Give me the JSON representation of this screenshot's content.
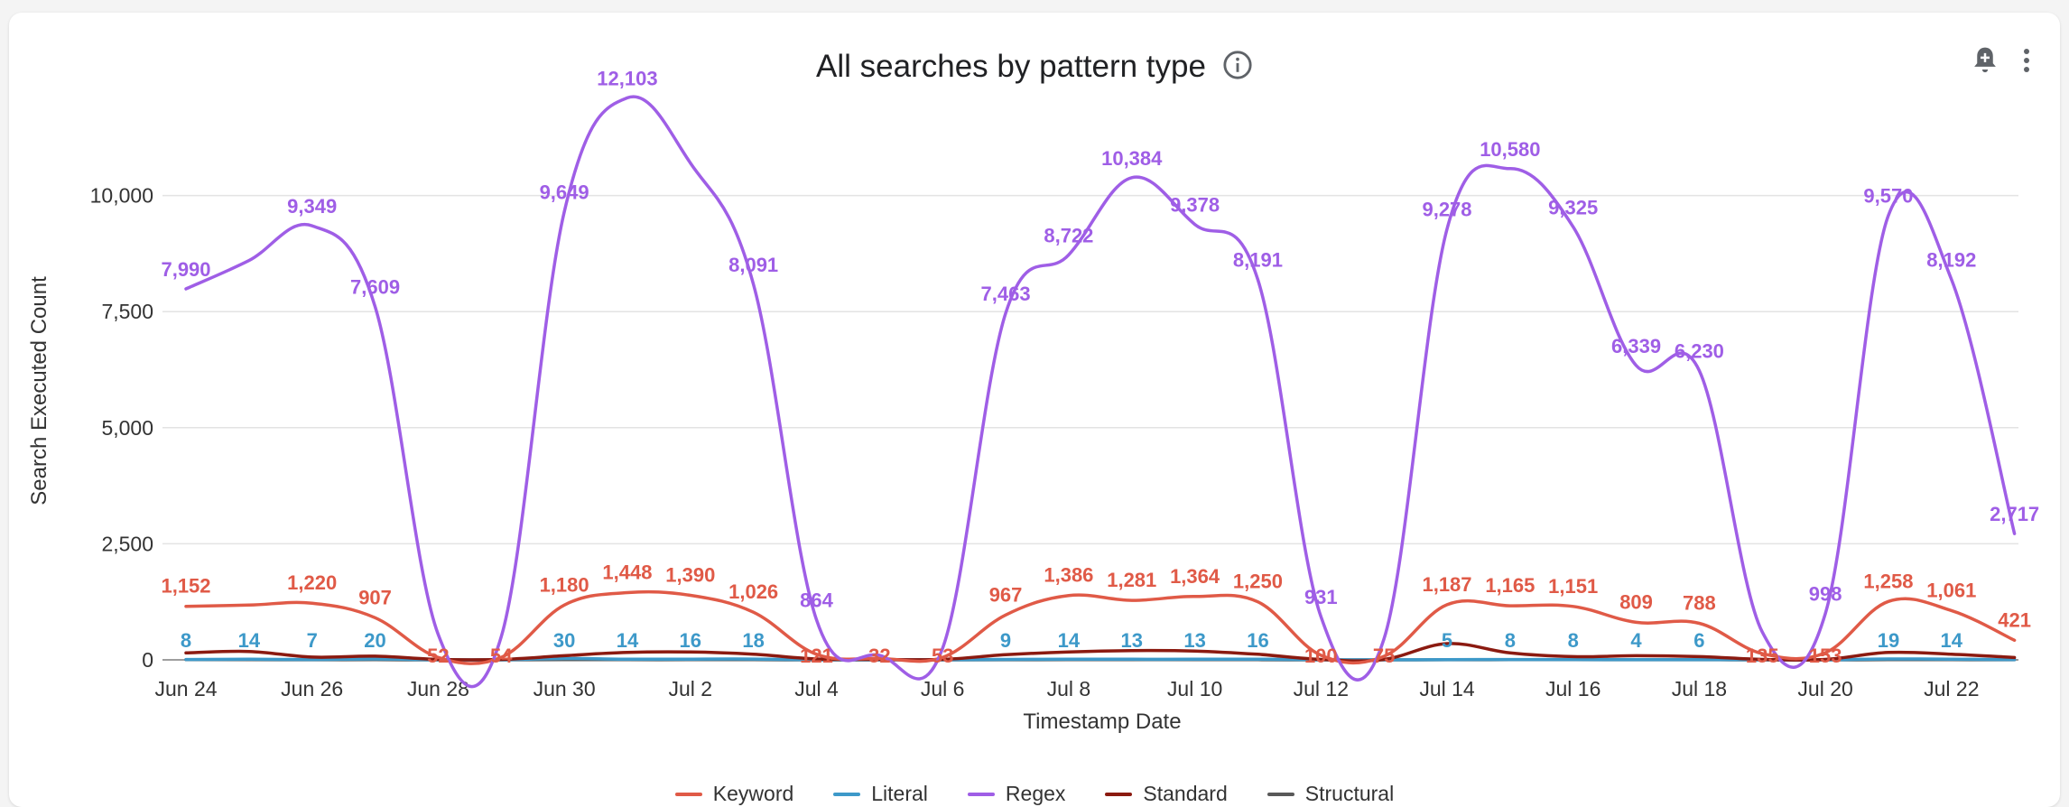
{
  "title": "All searches by pattern type",
  "icons": {
    "info": "info-icon",
    "alert": "add-alert-bell-icon",
    "menu": "more-vert-icon"
  },
  "chart_data": {
    "type": "line",
    "title": "All searches by pattern type",
    "xlabel": "Timestamp Date",
    "ylabel": "Search Executed Count",
    "ylim": [
      0,
      12500
    ],
    "yticks": [
      0,
      2500,
      5000,
      7500,
      10000
    ],
    "ytick_labels": [
      "0",
      "2,500",
      "5,000",
      "7,500",
      "10,000"
    ],
    "grid": true,
    "legend_position": "bottom",
    "x": [
      "2024-06-24",
      "2024-06-25",
      "2024-06-26",
      "2024-06-27",
      "2024-06-28",
      "2024-06-29",
      "2024-06-30",
      "2024-07-01",
      "2024-07-02",
      "2024-07-03",
      "2024-07-04",
      "2024-07-05",
      "2024-07-06",
      "2024-07-07",
      "2024-07-08",
      "2024-07-09",
      "2024-07-10",
      "2024-07-11",
      "2024-07-12",
      "2024-07-13",
      "2024-07-14",
      "2024-07-15",
      "2024-07-16",
      "2024-07-17",
      "2024-07-18",
      "2024-07-19",
      "2024-07-20",
      "2024-07-21",
      "2024-07-22",
      "2024-07-23"
    ],
    "xtick_labels": [
      "Jun 24",
      "",
      "Jun 26",
      "",
      "Jun 28",
      "",
      "Jun 30",
      "",
      "Jul 2",
      "",
      "Jul 4",
      "",
      "Jul 6",
      "",
      "Jul 8",
      "",
      "Jul 10",
      "",
      "Jul 12",
      "",
      "Jul 14",
      "",
      "Jul 16",
      "",
      "Jul 18",
      "",
      "Jul 20",
      "",
      "Jul 22",
      ""
    ],
    "series": [
      {
        "name": "Keyword",
        "color": "#e05a47",
        "values": [
          1152,
          1180,
          1220,
          907,
          52,
          54,
          1180,
          1448,
          1390,
          1026,
          121,
          32,
          53,
          967,
          1386,
          1281,
          1364,
          1250,
          100,
          75,
          1187,
          1165,
          1151,
          809,
          788,
          135,
          153,
          1258,
          1061,
          421
        ],
        "labels": [
          "1,152",
          "",
          "1,220",
          "907",
          "52",
          "54",
          "1,180",
          "1,448",
          "1,390",
          "1,026",
          "121",
          "32",
          "53",
          "967",
          "1,386",
          "1,281",
          "1,364",
          "1,250",
          "100",
          "75",
          "1,187",
          "1,165",
          "1,151",
          "809",
          "788",
          "135",
          "153",
          "1,258",
          "1,061",
          "421"
        ]
      },
      {
        "name": "Literal",
        "color": "#3d99c9",
        "values": [
          8,
          14,
          7,
          20,
          2,
          2,
          30,
          14,
          16,
          18,
          2,
          1,
          2,
          9,
          14,
          13,
          13,
          16,
          2,
          2,
          5,
          8,
          8,
          4,
          6,
          2,
          2,
          19,
          14,
          4
        ],
        "labels": [
          "8",
          "14",
          "7",
          "20",
          "",
          "",
          "30",
          "14",
          "16",
          "18",
          "",
          "",
          "",
          "9",
          "14",
          "13",
          "13",
          "16",
          "",
          "",
          "5",
          "8",
          "8",
          "4",
          "6",
          "",
          "",
          "19",
          "14",
          ""
        ]
      },
      {
        "name": "Regex",
        "color": "#9f5ee6",
        "values": [
          7990,
          8600,
          9349,
          7609,
          550,
          500,
          9649,
          12103,
          10700,
          8091,
          864,
          100,
          250,
          7463,
          8722,
          10384,
          9378,
          8191,
          931,
          450,
          9278,
          10580,
          9325,
          6339,
          6230,
          600,
          998,
          9570,
          8192,
          2717
        ],
        "labels": [
          "7,990",
          "",
          "9,349",
          "7,609",
          "",
          "",
          "9,649",
          "12,103",
          "",
          "8,091",
          "864",
          "",
          "",
          "7,463",
          "8,722",
          "10,384",
          "9,378",
          "8,191",
          "931",
          "",
          "9,278",
          "10,580",
          "9,325",
          "6,339",
          "6,230",
          "",
          "998",
          "9,570",
          "8,192",
          "2,717"
        ]
      },
      {
        "name": "Standard",
        "color": "#8b1a10",
        "values": [
          150,
          180,
          60,
          80,
          10,
          10,
          90,
          160,
          170,
          120,
          20,
          10,
          10,
          110,
          170,
          200,
          190,
          120,
          10,
          10,
          350,
          150,
          70,
          90,
          70,
          10,
          10,
          160,
          120,
          50
        ],
        "labels": []
      },
      {
        "name": "Structural",
        "color": "#595959",
        "values": [
          3,
          3,
          2,
          3,
          0,
          0,
          4,
          3,
          3,
          3,
          0,
          0,
          0,
          2,
          3,
          3,
          3,
          3,
          0,
          0,
          2,
          3,
          3,
          2,
          2,
          0,
          0,
          3,
          3,
          1
        ],
        "labels": []
      }
    ]
  }
}
